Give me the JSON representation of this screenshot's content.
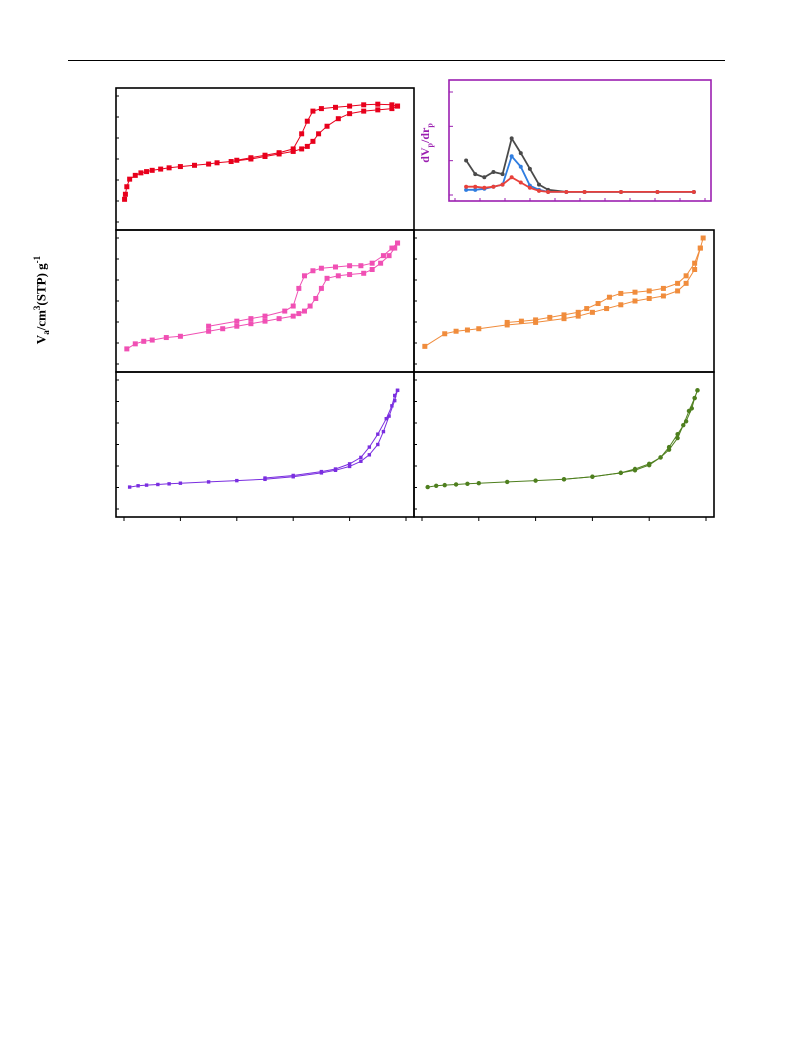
{
  "figure": {
    "y_axis_label": "Va/cm3(STP) g-1",
    "y_axis_label_parts": {
      "main": "V",
      "sub1": "a",
      "mid1": "/cm",
      "sup1": "3",
      "mid2": "(STP) g",
      "sup2": "-1"
    },
    "colors": {
      "panel1": "#e8001c",
      "panel2": "#f050b4",
      "panel3": "#f08c3c",
      "panel4": "#7a2ee0",
      "panel5": "#4e7f1e",
      "inset_axis": "#9b1fb0",
      "inset_black": "#4a4a4a",
      "inset_blue": "#2f7de0",
      "inset_red": "#e8403a"
    }
  },
  "inset": {
    "y_axis_label": "dVp/drp",
    "y_axis_label_parts": {
      "d1": "dV",
      "s1": "p",
      "slash": "/dr",
      "s2": "p"
    }
  },
  "chart_data": [
    {
      "panel": "top-left",
      "type": "scatter",
      "marker": "square",
      "color": "#e8001c",
      "xlim": [
        0,
        1.0
      ],
      "ylim": [
        0,
        100
      ],
      "series": [
        {
          "values": [
            [
              0.002,
              18
            ],
            [
              0.005,
              22
            ],
            [
              0.01,
              28
            ],
            [
              0.02,
              34
            ],
            [
              0.04,
              37
            ],
            [
              0.06,
              39
            ],
            [
              0.08,
              40
            ],
            [
              0.1,
              41
            ],
            [
              0.13,
              42
            ],
            [
              0.16,
              43
            ],
            [
              0.2,
              44
            ],
            [
              0.25,
              45
            ],
            [
              0.3,
              46
            ],
            [
              0.33,
              47
            ],
            [
              0.38,
              48
            ],
            [
              0.45,
              50
            ],
            [
              0.5,
              52
            ],
            [
              0.55,
              54
            ],
            [
              0.6,
              56
            ],
            [
              0.63,
              58
            ],
            [
              0.65,
              60
            ],
            [
              0.67,
              64
            ],
            [
              0.69,
              70
            ],
            [
              0.72,
              76
            ],
            [
              0.76,
              82
            ],
            [
              0.8,
              86
            ],
            [
              0.85,
              88
            ],
            [
              0.9,
              89
            ],
            [
              0.95,
              90
            ],
            [
              0.97,
              92
            ]
          ]
        },
        {
          "values": [
            [
              0.97,
              92
            ],
            [
              0.95,
              93
            ],
            [
              0.9,
              93.5
            ],
            [
              0.85,
              93
            ],
            [
              0.8,
              92
            ],
            [
              0.75,
              91
            ],
            [
              0.7,
              90
            ],
            [
              0.67,
              88
            ],
            [
              0.65,
              80
            ],
            [
              0.63,
              70
            ],
            [
              0.6,
              58
            ],
            [
              0.55,
              55
            ],
            [
              0.5,
              53
            ],
            [
              0.45,
              51
            ],
            [
              0.4,
              49
            ]
          ]
        }
      ]
    },
    {
      "panel": "inset",
      "type": "line",
      "ylim": [
        0,
        10
      ],
      "series": [
        {
          "color": "#4a4a4a",
          "values": [
            [
              1,
              3.1
            ],
            [
              2,
              1.8
            ],
            [
              3,
              1.5
            ],
            [
              4,
              2.0
            ],
            [
              5,
              1.8
            ],
            [
              6,
              5.2
            ],
            [
              7,
              3.8
            ],
            [
              8,
              2.3
            ],
            [
              9,
              0.8
            ],
            [
              10,
              0.3
            ],
            [
              12,
              0.1
            ],
            [
              14,
              0.1
            ],
            [
              18,
              0.1
            ],
            [
              22,
              0.1
            ],
            [
              26,
              0.1
            ]
          ]
        },
        {
          "color": "#2f7de0",
          "values": [
            [
              1,
              0.3
            ],
            [
              2,
              0.3
            ],
            [
              3,
              0.4
            ],
            [
              4,
              0.6
            ],
            [
              5,
              0.8
            ],
            [
              6,
              3.5
            ],
            [
              7,
              2.5
            ],
            [
              8,
              0.7
            ],
            [
              9,
              0.3
            ],
            [
              10,
              0.1
            ],
            [
              12,
              0.1
            ],
            [
              14,
              0.1
            ],
            [
              18,
              0.1
            ],
            [
              22,
              0.1
            ],
            [
              26,
              0.1
            ]
          ]
        },
        {
          "color": "#e8403a",
          "values": [
            [
              1,
              0.6
            ],
            [
              2,
              0.6
            ],
            [
              3,
              0.5
            ],
            [
              4,
              0.6
            ],
            [
              5,
              0.8
            ],
            [
              6,
              1.5
            ],
            [
              7,
              1.0
            ],
            [
              8,
              0.5
            ],
            [
              9,
              0.2
            ],
            [
              10,
              0.1
            ],
            [
              12,
              0.1
            ],
            [
              14,
              0.1
            ],
            [
              18,
              0.1
            ],
            [
              22,
              0.1
            ],
            [
              26,
              0.1
            ]
          ]
        }
      ]
    },
    {
      "panel": "middle-left",
      "type": "scatter",
      "marker": "square",
      "color": "#f050b4",
      "xlim": [
        0,
        1.0
      ],
      "ylim": [
        0,
        100
      ],
      "series": [
        {
          "values": [
            [
              0.01,
              12
            ],
            [
              0.04,
              16
            ],
            [
              0.07,
              18
            ],
            [
              0.1,
              19
            ],
            [
              0.15,
              21
            ],
            [
              0.2,
              22
            ],
            [
              0.3,
              26
            ],
            [
              0.35,
              28
            ],
            [
              0.4,
              30
            ],
            [
              0.45,
              32
            ],
            [
              0.5,
              34
            ],
            [
              0.55,
              36
            ],
            [
              0.6,
              38
            ],
            [
              0.62,
              40
            ],
            [
              0.64,
              42
            ],
            [
              0.66,
              46
            ],
            [
              0.68,
              52
            ],
            [
              0.7,
              60
            ],
            [
              0.72,
              68
            ],
            [
              0.76,
              70
            ],
            [
              0.8,
              71
            ],
            [
              0.85,
              72
            ],
            [
              0.88,
              75
            ],
            [
              0.91,
              80
            ],
            [
              0.94,
              86
            ],
            [
              0.96,
              92
            ],
            [
              0.97,
              96
            ]
          ]
        },
        {
          "values": [
            [
              0.97,
              96
            ],
            [
              0.95,
              92
            ],
            [
              0.92,
              86
            ],
            [
              0.88,
              80
            ],
            [
              0.84,
              78
            ],
            [
              0.8,
              78
            ],
            [
              0.75,
              77
            ],
            [
              0.7,
              76
            ],
            [
              0.67,
              74
            ],
            [
              0.64,
              70
            ],
            [
              0.62,
              60
            ],
            [
              0.6,
              46
            ],
            [
              0.57,
              42
            ],
            [
              0.5,
              38
            ],
            [
              0.45,
              36
            ],
            [
              0.4,
              34
            ],
            [
              0.3,
              30
            ]
          ]
        }
      ]
    },
    {
      "panel": "middle-right",
      "type": "scatter",
      "marker": "square",
      "color": "#f08c3c",
      "xlim": [
        0,
        1.0
      ],
      "ylim": [
        0,
        100
      ],
      "series": [
        {
          "values": [
            [
              0.01,
              14
            ],
            [
              0.08,
              24
            ],
            [
              0.12,
              26
            ],
            [
              0.16,
              27
            ],
            [
              0.2,
              28
            ],
            [
              0.3,
              31
            ],
            [
              0.4,
              33
            ],
            [
              0.5,
              36
            ],
            [
              0.55,
              38
            ],
            [
              0.6,
              41
            ],
            [
              0.65,
              44
            ],
            [
              0.7,
              47
            ],
            [
              0.75,
              50
            ],
            [
              0.8,
              52
            ],
            [
              0.85,
              54
            ],
            [
              0.9,
              58
            ],
            [
              0.93,
              64
            ],
            [
              0.96,
              75
            ],
            [
              0.98,
              92
            ],
            [
              0.99,
              100
            ]
          ]
        },
        {
          "values": [
            [
              0.98,
              92
            ],
            [
              0.96,
              80
            ],
            [
              0.93,
              70
            ],
            [
              0.9,
              64
            ],
            [
              0.85,
              60
            ],
            [
              0.8,
              58
            ],
            [
              0.75,
              57
            ],
            [
              0.7,
              56
            ],
            [
              0.66,
              53
            ],
            [
              0.62,
              48
            ],
            [
              0.58,
              44
            ],
            [
              0.55,
              41
            ],
            [
              0.5,
              39
            ],
            [
              0.45,
              37
            ],
            [
              0.4,
              35
            ],
            [
              0.35,
              34
            ],
            [
              0.3,
              33
            ]
          ]
        }
      ]
    },
    {
      "panel": "bottom-left",
      "type": "scatter",
      "marker": "square-small",
      "color": "#7a2ee0",
      "xlim": [
        0,
        1.0
      ],
      "ylim": [
        0,
        100
      ],
      "series": [
        {
          "values": [
            [
              0.02,
              17
            ],
            [
              0.05,
              18
            ],
            [
              0.08,
              18.5
            ],
            [
              0.12,
              19
            ],
            [
              0.16,
              19.5
            ],
            [
              0.2,
              20
            ],
            [
              0.3,
              21
            ],
            [
              0.4,
              22
            ],
            [
              0.5,
              23
            ],
            [
              0.6,
              25
            ],
            [
              0.7,
              28
            ],
            [
              0.75,
              30
            ],
            [
              0.8,
              33
            ],
            [
              0.84,
              37
            ],
            [
              0.87,
              42
            ],
            [
              0.9,
              50
            ],
            [
              0.92,
              60
            ],
            [
              0.94,
              72
            ],
            [
              0.96,
              84
            ],
            [
              0.97,
              92
            ]
          ]
        },
        {
          "values": [
            [
              0.97,
              92
            ],
            [
              0.96,
              88
            ],
            [
              0.95,
              80
            ],
            [
              0.93,
              70
            ],
            [
              0.9,
              58
            ],
            [
              0.87,
              48
            ],
            [
              0.84,
              40
            ],
            [
              0.8,
              35
            ],
            [
              0.75,
              31
            ],
            [
              0.7,
              29
            ],
            [
              0.6,
              26
            ],
            [
              0.5,
              24
            ]
          ]
        }
      ]
    },
    {
      "panel": "bottom-right",
      "type": "scatter",
      "marker": "circle",
      "color": "#4e7f1e",
      "xlim": [
        0,
        1.0
      ],
      "ylim": [
        0,
        100
      ],
      "series": [
        {
          "values": [
            [
              0.02,
              17
            ],
            [
              0.05,
              18
            ],
            [
              0.08,
              18.5
            ],
            [
              0.12,
              19
            ],
            [
              0.16,
              19.5
            ],
            [
              0.2,
              20
            ],
            [
              0.3,
              21
            ],
            [
              0.4,
              22
            ],
            [
              0.5,
              23
            ],
            [
              0.6,
              25
            ],
            [
              0.7,
              28
            ],
            [
              0.75,
              31
            ],
            [
              0.8,
              35
            ],
            [
              0.84,
              40
            ],
            [
              0.87,
              46
            ],
            [
              0.9,
              55
            ],
            [
              0.92,
              65
            ],
            [
              0.94,
              76
            ],
            [
              0.96,
              86
            ],
            [
              0.97,
              92
            ]
          ]
        },
        {
          "values": [
            [
              0.97,
              92
            ],
            [
              0.96,
              86
            ],
            [
              0.95,
              78
            ],
            [
              0.93,
              68
            ],
            [
              0.9,
              58
            ],
            [
              0.87,
              48
            ],
            [
              0.84,
              40
            ],
            [
              0.8,
              34
            ],
            [
              0.75,
              30
            ],
            [
              0.7,
              28
            ],
            [
              0.6,
              25
            ],
            [
              0.5,
              23
            ]
          ]
        }
      ]
    }
  ]
}
